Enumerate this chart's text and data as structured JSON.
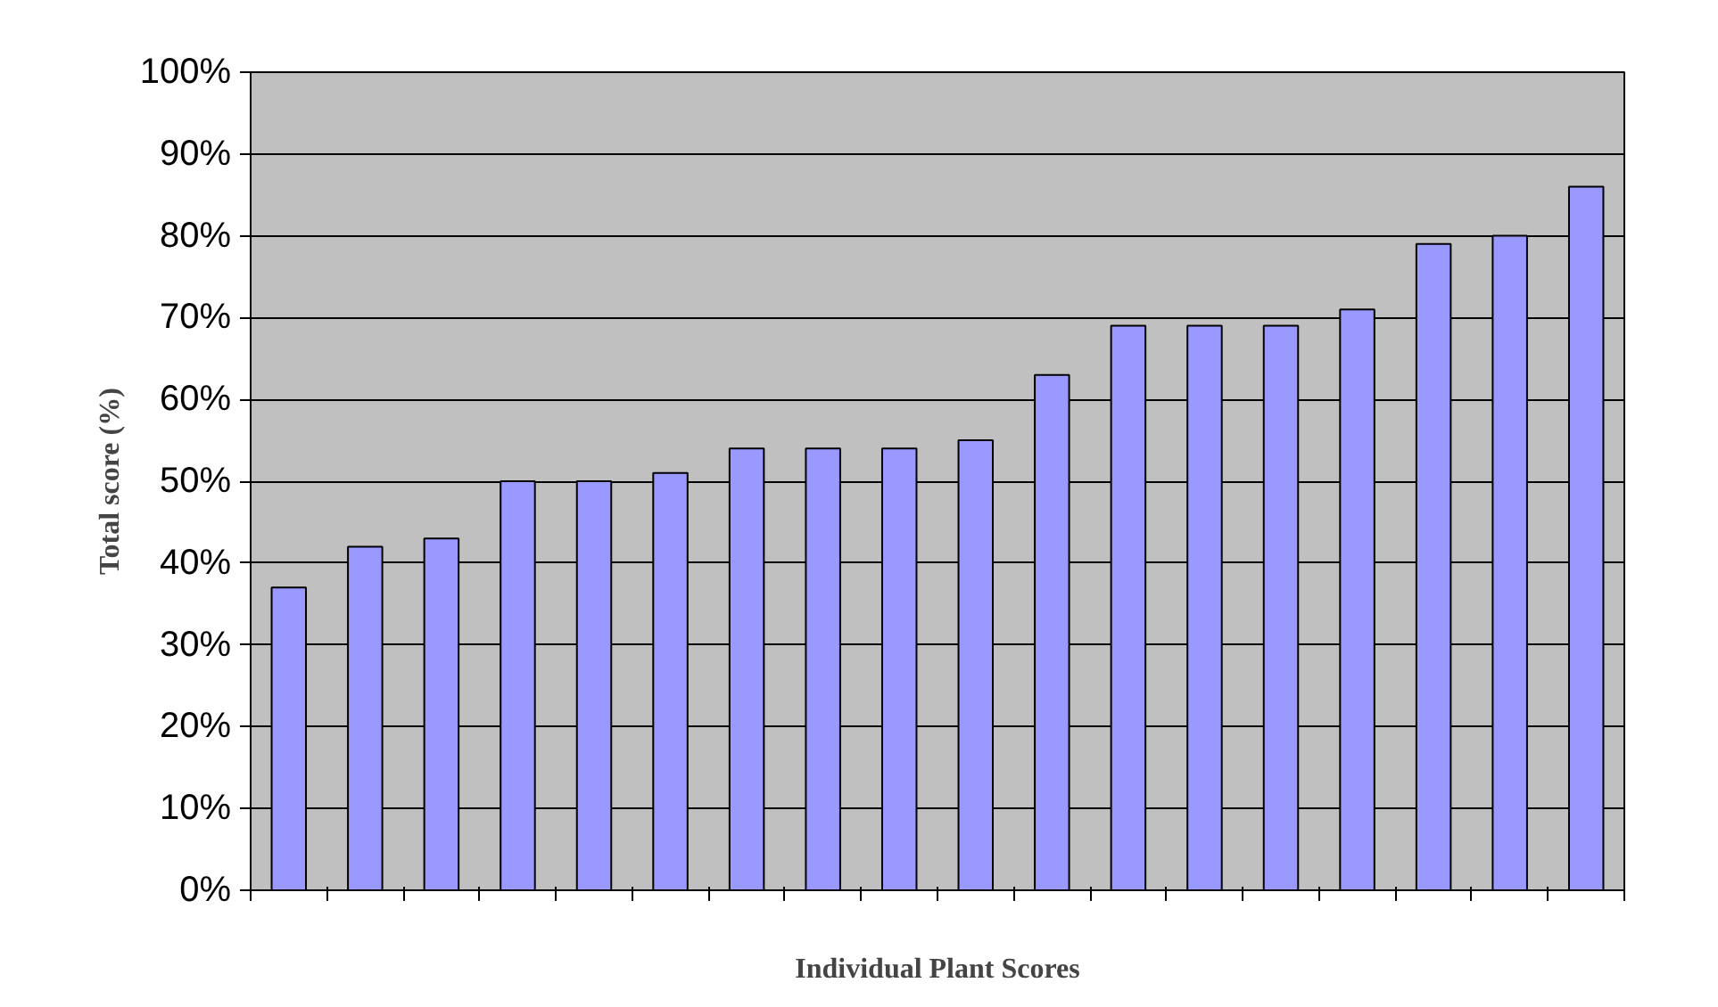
{
  "chart_data": {
    "type": "bar",
    "xlabel": "Individual Plant Scores",
    "ylabel": "Total score (%)",
    "categories": [
      null,
      null,
      null,
      null,
      null,
      null,
      null,
      null,
      null,
      null,
      null,
      null,
      null,
      null,
      null,
      null,
      null,
      null
    ],
    "values": [
      37,
      42,
      43,
      50,
      50,
      51,
      54,
      54,
      54,
      55,
      63,
      69,
      69,
      69,
      71,
      79,
      80,
      86
    ],
    "color": "#9999ff",
    "ylim": [
      0,
      100
    ],
    "yticks": [
      {
        "value": 0,
        "label": "0%"
      },
      {
        "value": 10,
        "label": "10%"
      },
      {
        "value": 20,
        "label": "20%"
      },
      {
        "value": 30,
        "label": "30%"
      },
      {
        "value": 40,
        "label": "40%"
      },
      {
        "value": 50,
        "label": "50%"
      },
      {
        "value": 60,
        "label": "60%"
      },
      {
        "value": 70,
        "label": "70%"
      },
      {
        "value": 80,
        "label": "80%"
      },
      {
        "value": 90,
        "label": "90%"
      },
      {
        "value": 100,
        "label": "100%"
      }
    ],
    "grid": "y"
  }
}
